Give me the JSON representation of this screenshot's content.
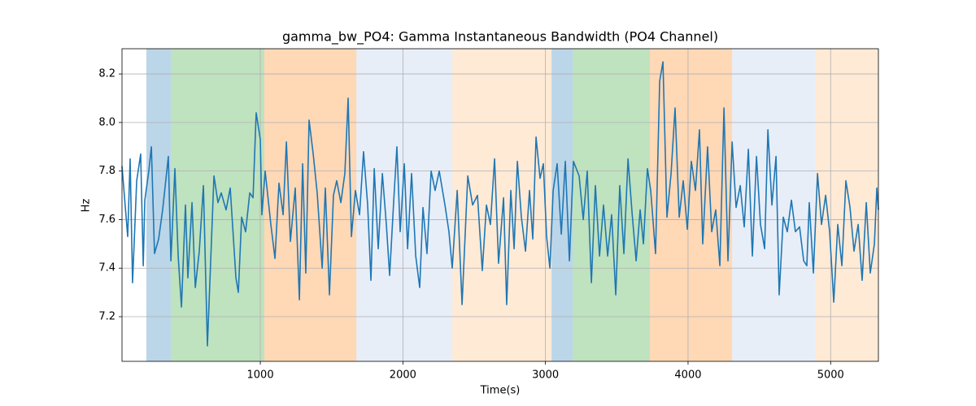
{
  "chart_data": {
    "type": "line",
    "title": "gamma_bw_PO4: Gamma Instantaneous Bandwidth (PO4 Channel)",
    "xlabel": "Time(s)",
    "ylabel": "Hz",
    "color": "#1f77b4",
    "grid": true,
    "xlim": [
      30,
      5335
    ],
    "ylim": [
      7.016,
      8.304
    ],
    "xticks": [
      1000,
      2000,
      3000,
      4000,
      5000
    ],
    "yticks": [
      7.2,
      7.4,
      7.6,
      7.8,
      {
        "value": 8,
        "label": "8.0"
      },
      8.2
    ],
    "spans": [
      {
        "start": 201,
        "end": 373,
        "color": "#1f77b4",
        "alpha": 0.3
      },
      {
        "start": 373,
        "end": 1028,
        "color": "#2ca02c",
        "alpha": 0.3
      },
      {
        "start": 1028,
        "end": 1674,
        "color": "#ff7f0e",
        "alpha": 0.3
      },
      {
        "start": 1674,
        "end": 2347,
        "color": "#aec7e8",
        "alpha": 0.3
      },
      {
        "start": 2347,
        "end": 3043,
        "color": "#ffbb78",
        "alpha": 0.3
      },
      {
        "start": 3043,
        "end": 3191,
        "color": "#1f77b4",
        "alpha": 0.3
      },
      {
        "start": 3191,
        "end": 3733,
        "color": "#2ca02c",
        "alpha": 0.3
      },
      {
        "start": 3733,
        "end": 4309,
        "color": "#ff7f0e",
        "alpha": 0.3
      },
      {
        "start": 4309,
        "end": 4891,
        "color": "#aec7e8",
        "alpha": 0.3
      },
      {
        "start": 4891,
        "end": 5335,
        "color": "#ffbb78",
        "alpha": 0.3
      }
    ],
    "x": [
      30,
      70,
      87,
      104,
      133,
      161,
      179,
      190,
      218,
      236,
      258,
      287,
      315,
      355,
      373,
      401,
      424,
      447,
      475,
      492,
      521,
      544,
      572,
      601,
      629,
      675,
      703,
      726,
      760,
      789,
      829,
      846,
      869,
      897,
      926,
      949,
      971,
      1000,
      1011,
      1034,
      1074,
      1103,
      1131,
      1160,
      1183,
      1211,
      1245,
      1274,
      1297,
      1319,
      1342,
      1371,
      1399,
      1434,
      1456,
      1485,
      1513,
      1536,
      1565,
      1593,
      1616,
      1639,
      1667,
      1696,
      1724,
      1753,
      1776,
      1799,
      1827,
      1856,
      1884,
      1907,
      1936,
      1958,
      1981,
      2010,
      2033,
      2061,
      2090,
      2118,
      2141,
      2169,
      2198,
      2226,
      2255,
      2295,
      2323,
      2346,
      2381,
      2415,
      2455,
      2489,
      2523,
      2557,
      2586,
      2614,
      2643,
      2671,
      2706,
      2728,
      2757,
      2780,
      2803,
      2831,
      2860,
      2888,
      2911,
      2934,
      2962,
      2985,
      3008,
      3031,
      3054,
      3082,
      3111,
      3139,
      3168,
      3196,
      3236,
      3265,
      3293,
      3322,
      3350,
      3379,
      3407,
      3436,
      3464,
      3493,
      3521,
      3550,
      3579,
      3607,
      3636,
      3664,
      3687,
      3715,
      3738,
      3772,
      3801,
      3824,
      3852,
      3881,
      3909,
      3938,
      3966,
      3995,
      4023,
      4052,
      4080,
      4103,
      4137,
      4166,
      4194,
      4223,
      4252,
      4280,
      4309,
      4337,
      4366,
      4394,
      4423,
      4451,
      4480,
      4508,
      4537,
      4560,
      4588,
      4617,
      4639,
      4668,
      4696,
      4725,
      4753,
      4782,
      4811,
      4833,
      4850,
      4879,
      4908,
      4936,
      4965,
      4993,
      5022,
      5050,
      5079,
      5107,
      5136,
      5164,
      5193,
      5221,
      5250,
      5278,
      5307,
      5324,
      5335
    ],
    "values": [
      7.82,
      7.53,
      7.85,
      7.34,
      7.76,
      7.87,
      7.41,
      7.68,
      7.8,
      7.9,
      7.46,
      7.52,
      7.64,
      7.86,
      7.43,
      7.81,
      7.45,
      7.24,
      7.66,
      7.36,
      7.67,
      7.32,
      7.47,
      7.74,
      7.08,
      7.78,
      7.67,
      7.71,
      7.64,
      7.73,
      7.36,
      7.3,
      7.61,
      7.55,
      7.71,
      7.69,
      8.04,
      7.93,
      7.62,
      7.8,
      7.58,
      7.44,
      7.75,
      7.62,
      7.92,
      7.51,
      7.73,
      7.27,
      7.83,
      7.38,
      8.01,
      7.87,
      7.71,
      7.4,
      7.73,
      7.29,
      7.7,
      7.76,
      7.67,
      7.79,
      8.1,
      7.53,
      7.72,
      7.62,
      7.88,
      7.66,
      7.35,
      7.81,
      7.48,
      7.79,
      7.58,
      7.37,
      7.68,
      7.9,
      7.55,
      7.83,
      7.48,
      7.79,
      7.45,
      7.32,
      7.65,
      7.46,
      7.8,
      7.72,
      7.8,
      7.66,
      7.55,
      7.4,
      7.72,
      7.25,
      7.78,
      7.66,
      7.7,
      7.39,
      7.66,
      7.58,
      7.85,
      7.42,
      7.69,
      7.25,
      7.72,
      7.48,
      7.84,
      7.61,
      7.47,
      7.72,
      7.52,
      7.94,
      7.77,
      7.83,
      7.53,
      7.4,
      7.72,
      7.83,
      7.54,
      7.84,
      7.43,
      7.84,
      7.78,
      7.6,
      7.8,
      7.34,
      7.74,
      7.45,
      7.66,
      7.45,
      7.62,
      7.29,
      7.74,
      7.46,
      7.85,
      7.63,
      7.43,
      7.64,
      7.5,
      7.81,
      7.72,
      7.46,
      8.17,
      8.25,
      7.61,
      7.79,
      8.06,
      7.61,
      7.76,
      7.56,
      7.84,
      7.72,
      7.97,
      7.5,
      7.9,
      7.55,
      7.64,
      7.41,
      8.06,
      7.43,
      7.92,
      7.65,
      7.74,
      7.57,
      7.89,
      7.45,
      7.86,
      7.58,
      7.48,
      7.97,
      7.66,
      7.86,
      7.29,
      7.61,
      7.55,
      7.68,
      7.55,
      7.57,
      7.43,
      7.41,
      7.67,
      7.38,
      7.79,
      7.58,
      7.7,
      7.55,
      7.26,
      7.58,
      7.41,
      7.76,
      7.65,
      7.47,
      7.58,
      7.35,
      7.67,
      7.38,
      7.5,
      7.73,
      7.64
    ]
  }
}
